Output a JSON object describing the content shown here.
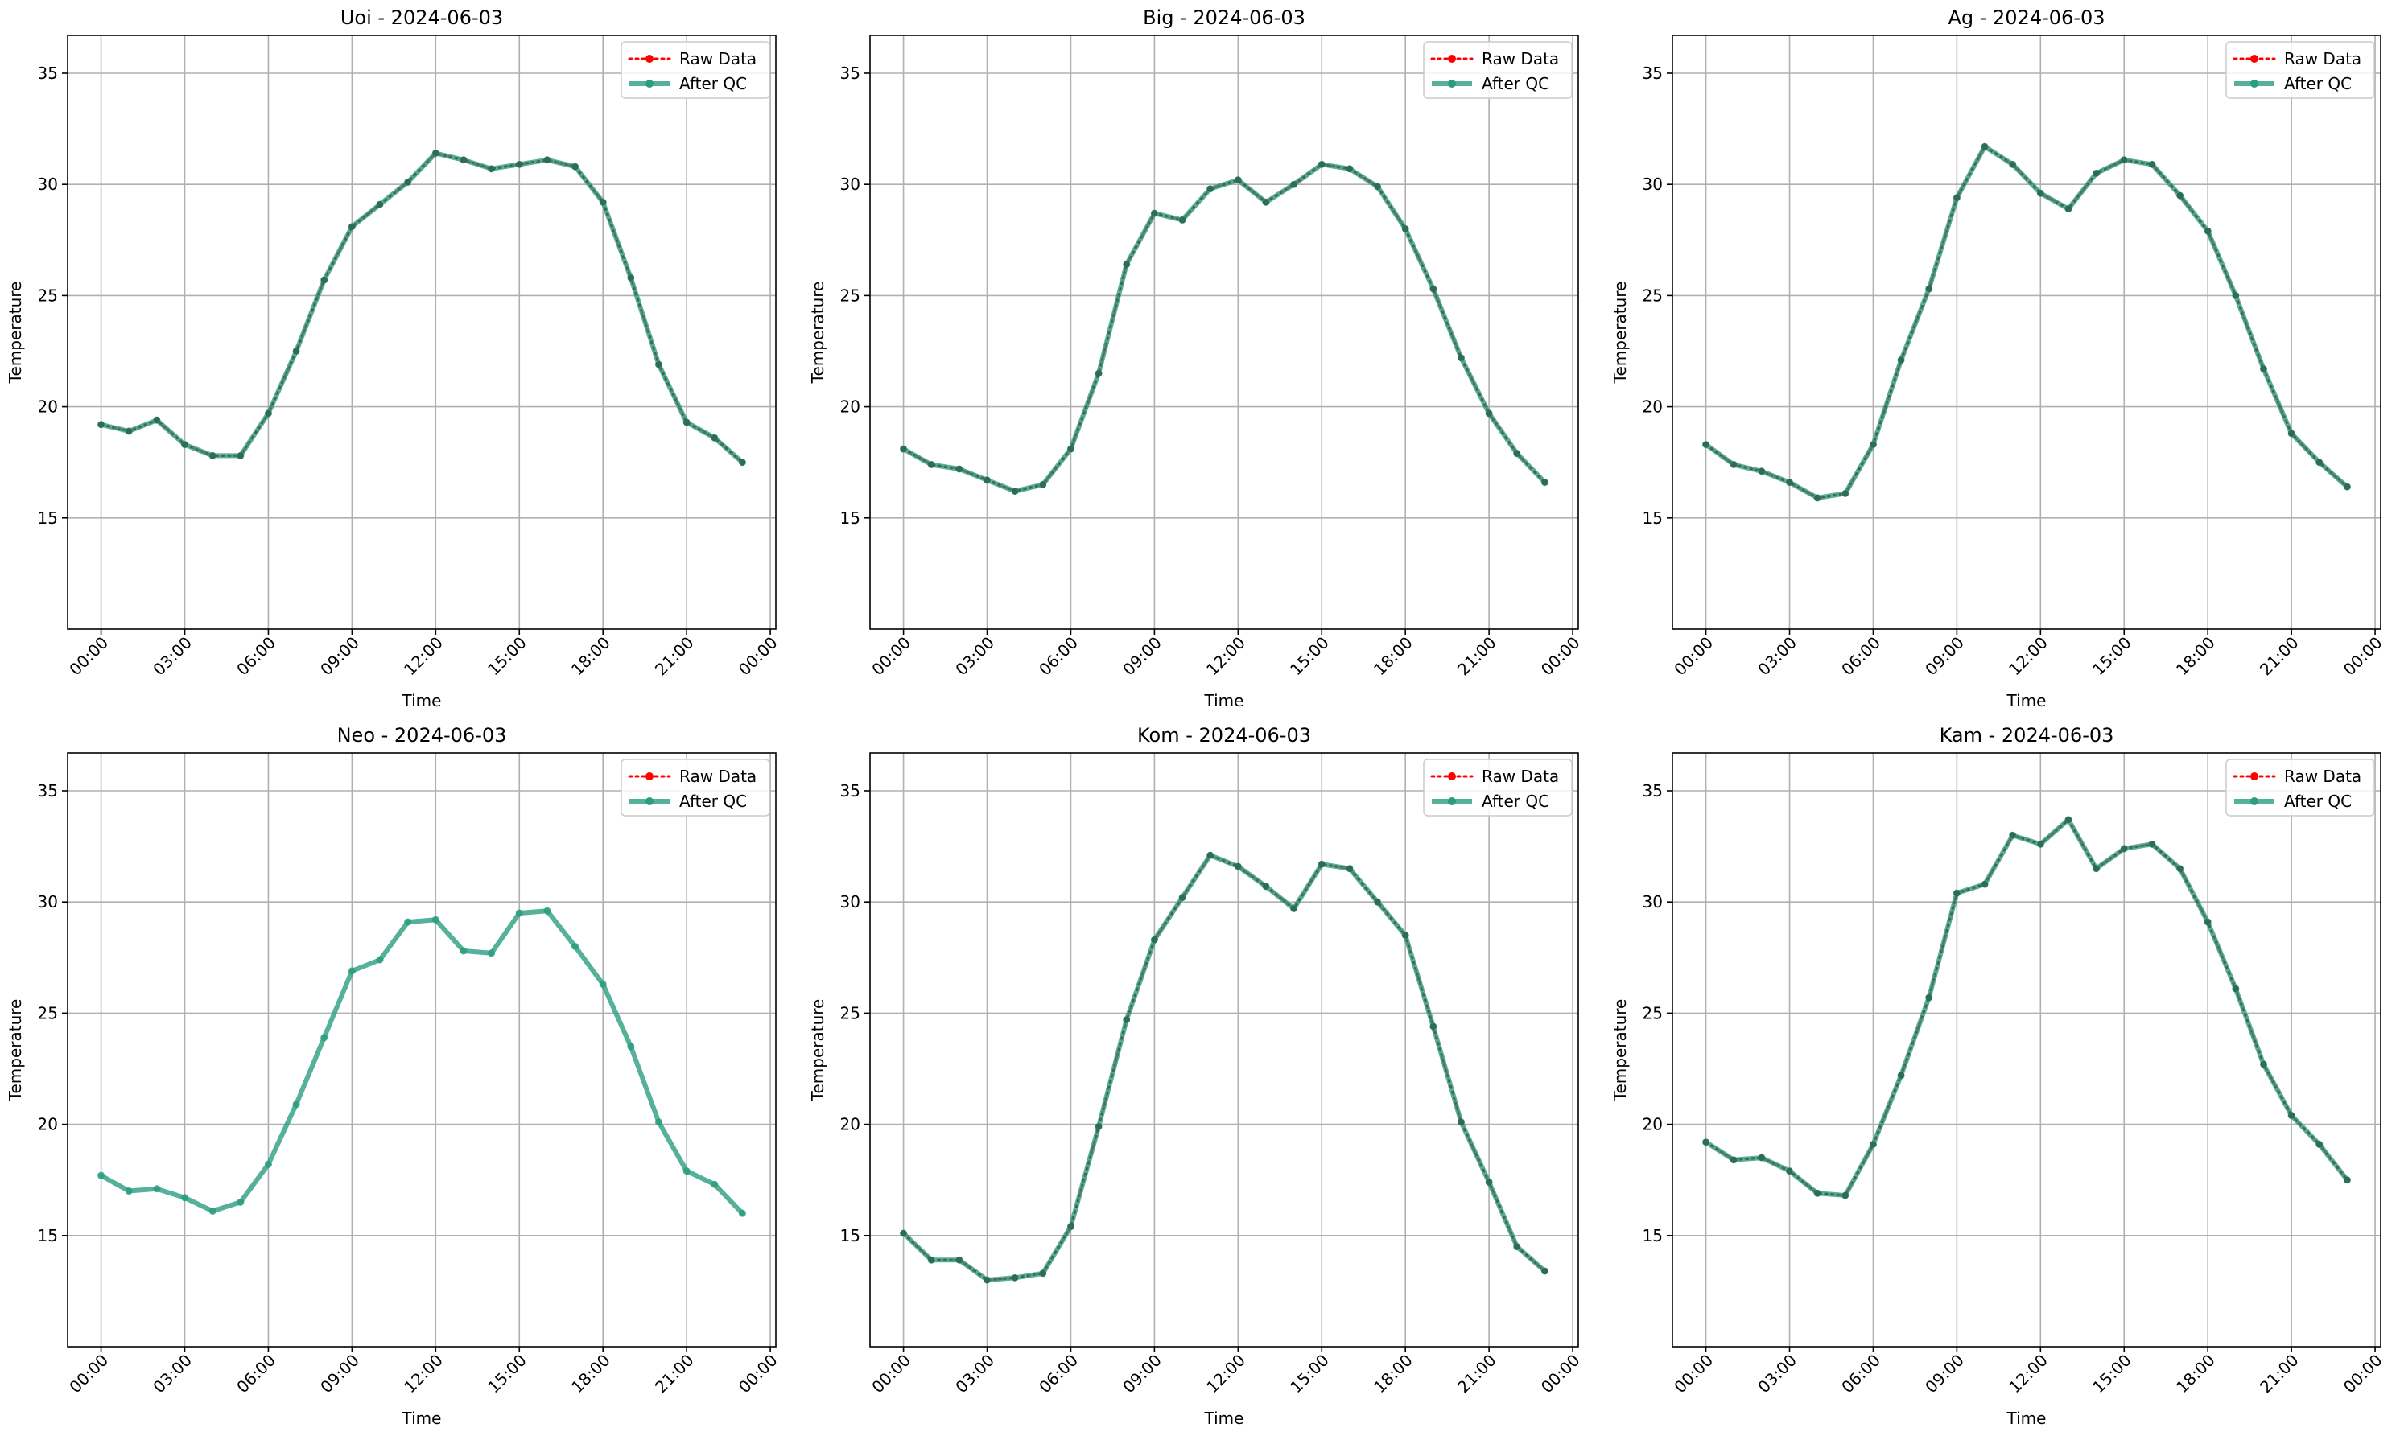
{
  "chart_data": [
    {
      "type": "line",
      "title": "Uoi - 2024-06-03",
      "xlabel": "Time",
      "ylabel": "Temperature",
      "x_tick_labels": [
        "00:00",
        "03:00",
        "06:00",
        "09:00",
        "12:00",
        "15:00",
        "18:00",
        "21:00",
        "00:00"
      ],
      "x_ticks_hours": [
        0,
        3,
        6,
        9,
        12,
        15,
        18,
        21,
        24
      ],
      "y_ticks": [
        15,
        20,
        25,
        30,
        35
      ],
      "xlim": [
        -1.2,
        24.2
      ],
      "ylim": [
        10,
        36.7
      ],
      "grid": true,
      "legend_position": "top-right",
      "x_hours": [
        0,
        1,
        2,
        3,
        4,
        5,
        6,
        7,
        8,
        9,
        10,
        11,
        12,
        13,
        14,
        15,
        16,
        17,
        18,
        19,
        20,
        21,
        22,
        23
      ],
      "series": [
        {
          "name": "Raw Data",
          "color": "#ff0000",
          "values": [
            19.2,
            18.9,
            19.4,
            18.3,
            17.8,
            17.8,
            19.7,
            22.5,
            25.7,
            28.1,
            29.1,
            30.1,
            31.4,
            31.1,
            30.7,
            30.9,
            31.1,
            30.8,
            29.2,
            25.8,
            21.9,
            19.3,
            18.6,
            17.5
          ]
        },
        {
          "name": "After QC",
          "color": "#2a9d7f",
          "values": [
            19.2,
            18.9,
            19.4,
            18.3,
            17.8,
            17.8,
            19.7,
            22.5,
            25.7,
            28.1,
            29.1,
            30.1,
            31.4,
            31.1,
            30.7,
            30.9,
            31.1,
            30.8,
            29.2,
            25.8,
            21.9,
            19.3,
            18.6,
            17.5
          ]
        }
      ]
    },
    {
      "type": "line",
      "title": "Big - 2024-06-03",
      "xlabel": "Time",
      "ylabel": "Temperature",
      "x_tick_labels": [
        "00:00",
        "03:00",
        "06:00",
        "09:00",
        "12:00",
        "15:00",
        "18:00",
        "21:00",
        "00:00"
      ],
      "x_ticks_hours": [
        0,
        3,
        6,
        9,
        12,
        15,
        18,
        21,
        24
      ],
      "y_ticks": [
        15,
        20,
        25,
        30,
        35
      ],
      "xlim": [
        -1.2,
        24.2
      ],
      "ylim": [
        10,
        36.7
      ],
      "grid": true,
      "legend_position": "top-right",
      "x_hours": [
        0,
        1,
        2,
        3,
        4,
        5,
        6,
        7,
        8,
        9,
        10,
        11,
        12,
        13,
        14,
        15,
        16,
        17,
        18,
        19,
        20,
        21,
        22,
        23
      ],
      "series": [
        {
          "name": "Raw Data",
          "color": "#ff0000",
          "values": [
            18.1,
            17.4,
            17.2,
            16.7,
            16.2,
            16.5,
            18.1,
            21.5,
            26.4,
            28.7,
            28.4,
            29.8,
            30.2,
            29.2,
            30.0,
            30.9,
            30.7,
            29.9,
            28.0,
            25.3,
            22.2,
            19.7,
            17.9,
            16.6
          ]
        },
        {
          "name": "After QC",
          "color": "#2a9d7f",
          "values": [
            18.1,
            17.4,
            17.2,
            16.7,
            16.2,
            16.5,
            18.1,
            21.5,
            26.4,
            28.7,
            28.4,
            29.8,
            30.2,
            29.2,
            30.0,
            30.9,
            30.7,
            29.9,
            28.0,
            25.3,
            22.2,
            19.7,
            17.9,
            16.6
          ]
        }
      ]
    },
    {
      "type": "line",
      "title": "Ag - 2024-06-03",
      "xlabel": "Time",
      "ylabel": "Temperature",
      "x_tick_labels": [
        "00:00",
        "03:00",
        "06:00",
        "09:00",
        "12:00",
        "15:00",
        "18:00",
        "21:00",
        "00:00"
      ],
      "x_ticks_hours": [
        0,
        3,
        6,
        9,
        12,
        15,
        18,
        21,
        24
      ],
      "y_ticks": [
        15,
        20,
        25,
        30,
        35
      ],
      "xlim": [
        -1.2,
        24.2
      ],
      "ylim": [
        10,
        36.7
      ],
      "grid": true,
      "legend_position": "top-right",
      "x_hours": [
        0,
        1,
        2,
        3,
        4,
        5,
        6,
        7,
        8,
        9,
        10,
        11,
        12,
        13,
        14,
        15,
        16,
        17,
        18,
        19,
        20,
        21,
        22,
        23
      ],
      "series": [
        {
          "name": "Raw Data",
          "color": "#ff0000",
          "values": [
            18.3,
            17.4,
            17.1,
            16.6,
            15.9,
            16.1,
            18.3,
            22.1,
            25.3,
            29.4,
            31.7,
            30.9,
            29.6,
            28.9,
            30.5,
            31.1,
            30.9,
            29.5,
            27.9,
            25.0,
            21.7,
            18.8,
            17.5,
            16.4
          ]
        },
        {
          "name": "After QC",
          "color": "#2a9d7f",
          "values": [
            18.3,
            17.4,
            17.1,
            16.6,
            15.9,
            16.1,
            18.3,
            22.1,
            25.3,
            29.4,
            31.7,
            30.9,
            29.6,
            28.9,
            30.5,
            31.1,
            30.9,
            29.5,
            27.9,
            25.0,
            21.7,
            18.8,
            17.5,
            16.4
          ]
        }
      ]
    },
    {
      "type": "line",
      "title": "Neo - 2024-06-03",
      "xlabel": "Time",
      "ylabel": "Temperature",
      "x_tick_labels": [
        "00:00",
        "03:00",
        "06:00",
        "09:00",
        "12:00",
        "15:00",
        "18:00",
        "21:00",
        "00:00"
      ],
      "x_ticks_hours": [
        0,
        3,
        6,
        9,
        12,
        15,
        18,
        21,
        24
      ],
      "y_ticks": [
        15,
        20,
        25,
        30,
        35
      ],
      "xlim": [
        -1.2,
        24.2
      ],
      "ylim": [
        10,
        36.7
      ],
      "grid": true,
      "legend_position": "top-right",
      "x_hours": [
        0,
        1,
        2,
        3,
        4,
        5,
        6,
        7,
        8,
        9,
        10,
        11,
        12,
        13,
        14,
        15,
        16,
        17,
        18,
        19,
        20,
        21,
        22,
        23
      ],
      "series": [
        {
          "name": "Raw Data",
          "color": "#ff0000",
          "values": []
        },
        {
          "name": "After QC",
          "color": "#2a9d7f",
          "values": [
            17.7,
            17.0,
            17.1,
            16.7,
            16.1,
            16.5,
            18.2,
            20.9,
            23.9,
            26.9,
            27.4,
            29.1,
            29.2,
            27.8,
            27.7,
            29.5,
            29.6,
            28.0,
            26.3,
            23.5,
            20.1,
            17.9,
            17.3,
            16.0
          ]
        }
      ]
    },
    {
      "type": "line",
      "title": "Kom - 2024-06-03",
      "xlabel": "Time",
      "ylabel": "Temperature",
      "x_tick_labels": [
        "00:00",
        "03:00",
        "06:00",
        "09:00",
        "12:00",
        "15:00",
        "18:00",
        "21:00",
        "00:00"
      ],
      "x_ticks_hours": [
        0,
        3,
        6,
        9,
        12,
        15,
        18,
        21,
        24
      ],
      "y_ticks": [
        15,
        20,
        25,
        30,
        35
      ],
      "xlim": [
        -1.2,
        24.2
      ],
      "ylim": [
        10,
        36.7
      ],
      "grid": true,
      "legend_position": "top-right",
      "x_hours": [
        0,
        1,
        2,
        3,
        4,
        5,
        6,
        7,
        8,
        9,
        10,
        11,
        12,
        13,
        14,
        15,
        16,
        17,
        18,
        19,
        20,
        21,
        22,
        23
      ],
      "series": [
        {
          "name": "Raw Data",
          "color": "#ff0000",
          "values": [
            15.1,
            13.9,
            13.9,
            13.0,
            13.1,
            13.3,
            15.4,
            19.9,
            24.7,
            28.3,
            30.2,
            32.1,
            31.6,
            30.7,
            29.7,
            31.7,
            31.5,
            30.0,
            28.5,
            24.4,
            20.1,
            17.4,
            14.5,
            13.4
          ]
        },
        {
          "name": "After QC",
          "color": "#2a9d7f",
          "values": [
            15.1,
            13.9,
            13.9,
            13.0,
            13.1,
            13.3,
            15.4,
            19.9,
            24.7,
            28.3,
            30.2,
            32.1,
            31.6,
            30.7,
            29.7,
            31.7,
            31.5,
            30.0,
            28.5,
            24.4,
            20.1,
            17.4,
            14.5,
            13.4
          ]
        }
      ]
    },
    {
      "type": "line",
      "title": "Kam - 2024-06-03",
      "xlabel": "Time",
      "ylabel": "Temperature",
      "x_tick_labels": [
        "00:00",
        "03:00",
        "06:00",
        "09:00",
        "12:00",
        "15:00",
        "18:00",
        "21:00",
        "00:00"
      ],
      "x_ticks_hours": [
        0,
        3,
        6,
        9,
        12,
        15,
        18,
        21,
        24
      ],
      "y_ticks": [
        15,
        20,
        25,
        30,
        35
      ],
      "xlim": [
        -1.2,
        24.2
      ],
      "ylim": [
        10,
        36.7
      ],
      "grid": true,
      "legend_position": "top-right",
      "x_hours": [
        0,
        1,
        2,
        3,
        4,
        5,
        6,
        7,
        8,
        9,
        10,
        11,
        12,
        13,
        14,
        15,
        16,
        17,
        18,
        19,
        20,
        21,
        22,
        23
      ],
      "series": [
        {
          "name": "Raw Data",
          "color": "#ff0000",
          "values": [
            19.2,
            18.4,
            18.5,
            17.9,
            16.9,
            16.8,
            19.1,
            22.2,
            25.7,
            30.4,
            30.8,
            33.0,
            32.6,
            33.7,
            31.5,
            32.4,
            32.6,
            31.5,
            29.1,
            26.1,
            22.7,
            20.4,
            19.1,
            17.5
          ]
        },
        {
          "name": "After QC",
          "color": "#2a9d7f",
          "values": [
            19.2,
            18.4,
            18.5,
            17.9,
            16.9,
            16.8,
            19.1,
            22.2,
            25.7,
            30.4,
            30.8,
            33.0,
            32.6,
            33.7,
            31.5,
            32.4,
            32.6,
            31.5,
            29.1,
            26.1,
            22.7,
            20.4,
            19.1,
            17.5
          ]
        }
      ]
    }
  ]
}
